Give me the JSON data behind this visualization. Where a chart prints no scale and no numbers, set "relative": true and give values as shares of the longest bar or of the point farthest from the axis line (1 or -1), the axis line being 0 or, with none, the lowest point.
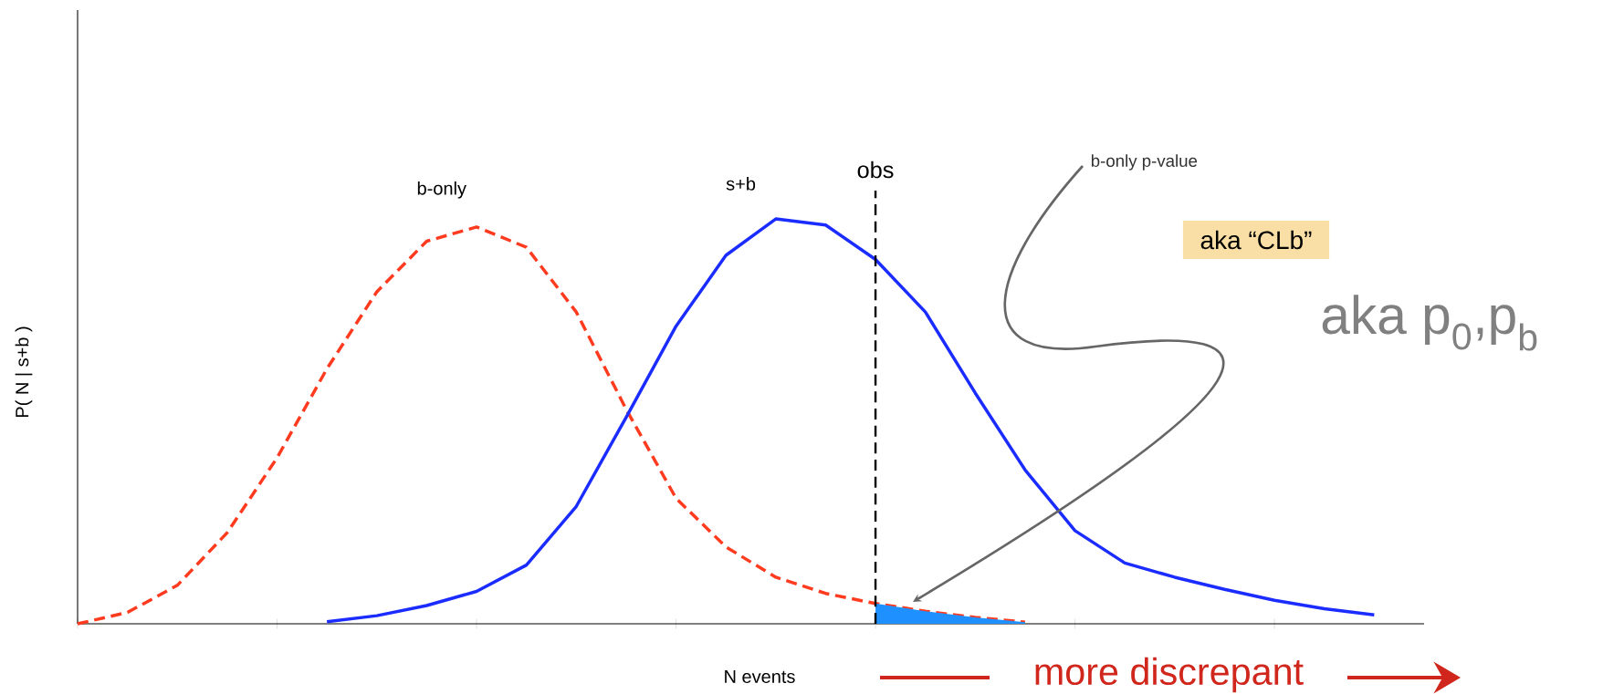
{
  "chart_data": {
    "type": "line",
    "relative": true,
    "xlabel": "N events",
    "ylabel": "P( N | s+b )",
    "categories": [
      null,
      null,
      null,
      null,
      null,
      null,
      null,
      null,
      null,
      null,
      null,
      null,
      null,
      null,
      null,
      null,
      null,
      null,
      null,
      null,
      null,
      null,
      null,
      null,
      null,
      null,
      null,
      null
    ],
    "series": [
      {
        "name": "b-only",
        "color": "#ff3b1f",
        "line_style": "dashed",
        "values": [
          0,
          0.028,
          0.095,
          0.225,
          0.41,
          0.63,
          0.82,
          0.945,
          0.98,
          0.93,
          0.77,
          0.53,
          0.31,
          0.19,
          0.115,
          0.075,
          0.05,
          0.031,
          0.016,
          0.004,
          null,
          null,
          null,
          null,
          null,
          null,
          null,
          null
        ]
      },
      {
        "name": "s+b",
        "color": "#1a2cff",
        "line_style": "solid",
        "values": [
          null,
          null,
          null,
          null,
          null,
          0.005,
          0.02,
          0.045,
          0.08,
          0.145,
          0.29,
          0.51,
          0.735,
          0.91,
          1,
          0.985,
          0.9,
          0.77,
          0.57,
          0.38,
          0.23,
          0.15,
          0.115,
          0.085,
          0.058,
          0.037,
          0.022,
          null
        ]
      },
      {
        "type": "area",
        "color": "#1e90ff",
        "values": [
          null,
          null,
          null,
          null,
          null,
          null,
          null,
          null,
          null,
          null,
          null,
          null,
          null,
          null,
          null,
          null,
          0.05,
          0.031,
          0.016,
          0.004,
          null,
          null,
          null,
          null,
          null,
          null,
          null,
          null
        ]
      }
    ],
    "annotations": [
      "obs",
      "b-only p-value",
      "aka “CLb”",
      "aka p$_{0}$,p$_{b}$",
      "more discrepant"
    ]
  }
}
